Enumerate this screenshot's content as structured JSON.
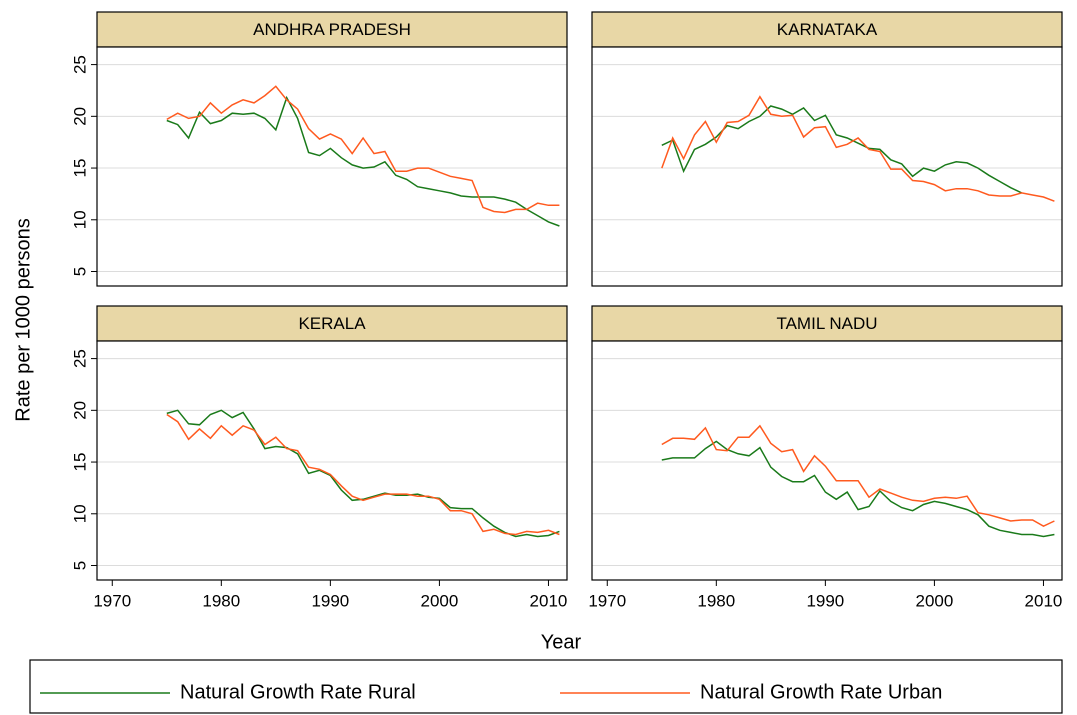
{
  "chart_data": {
    "type": "line",
    "xlabel": "Year",
    "ylabel": "Rate per 1000 persons",
    "x": [
      1975,
      1976,
      1977,
      1978,
      1979,
      1980,
      1981,
      1982,
      1983,
      1984,
      1985,
      1986,
      1987,
      1988,
      1989,
      1990,
      1991,
      1992,
      1993,
      1994,
      1995,
      1996,
      1997,
      1998,
      1999,
      2000,
      2001,
      2002,
      2003,
      2004,
      2005,
      2006,
      2007,
      2008,
      2009,
      2010,
      2011
    ],
    "xlim": [
      1968.6,
      2011.7
    ],
    "xticks": [
      1970,
      1980,
      1990,
      2000,
      2010
    ],
    "ylim": [
      3.6,
      26.7
    ],
    "yticks": [
      5,
      10,
      15,
      20,
      25
    ],
    "grid": true,
    "legend": "bottom",
    "series": [
      {
        "name": "Natural Growth Rate Rural",
        "color": "#1a7a1a"
      },
      {
        "name": "Natural Growth Rate Urban",
        "color": "#ff5a1f"
      }
    ],
    "panels": [
      {
        "title": "ANDHRA PRADESH",
        "values": [
          [
            19.6,
            19.2,
            17.9,
            20.4,
            19.3,
            19.6,
            20.3,
            20.2,
            20.3,
            19.8,
            18.7,
            21.8,
            19.8,
            16.5,
            16.2,
            16.9,
            16.0,
            15.3,
            15.0,
            15.1,
            15.6,
            14.3,
            13.9,
            13.2,
            13.0,
            12.8,
            12.6,
            12.3,
            12.2,
            12.2,
            12.2,
            12.0,
            11.7,
            11.0,
            10.4,
            9.8,
            9.4
          ],
          [
            19.7,
            20.3,
            19.8,
            20.0,
            21.3,
            20.3,
            21.1,
            21.6,
            21.3,
            22.0,
            22.9,
            21.6,
            20.7,
            18.8,
            17.8,
            18.3,
            17.8,
            16.4,
            17.9,
            16.4,
            16.6,
            14.7,
            14.7,
            15.0,
            15.0,
            14.6,
            14.2,
            14.0,
            13.8,
            11.2,
            10.8,
            10.7,
            11.0,
            11.0,
            11.6,
            11.4,
            11.4
          ]
        ]
      },
      {
        "title": "KARNATAKA",
        "values": [
          [
            17.2,
            17.7,
            14.7,
            16.8,
            17.3,
            18.0,
            19.1,
            18.8,
            19.5,
            20.0,
            21.0,
            20.7,
            20.2,
            20.8,
            19.6,
            20.1,
            18.2,
            17.9,
            17.4,
            16.9,
            16.8,
            15.8,
            15.4,
            14.2,
            15.0,
            14.7,
            15.3,
            15.6,
            15.5,
            15.0,
            14.3,
            13.7,
            13.1,
            12.6,
            null,
            null,
            null
          ],
          [
            15.0,
            17.9,
            15.9,
            18.2,
            19.5,
            17.5,
            19.4,
            19.5,
            20.1,
            21.9,
            20.2,
            20.0,
            20.1,
            18.0,
            18.9,
            19.0,
            17.0,
            17.3,
            17.9,
            16.8,
            16.6,
            14.9,
            14.9,
            13.8,
            13.7,
            13.4,
            12.8,
            13.0,
            13.0,
            12.8,
            12.4,
            12.3,
            12.3,
            12.6,
            12.4,
            12.2,
            11.8
          ]
        ]
      },
      {
        "title": "KERALA",
        "values": [
          [
            19.7,
            20.0,
            18.7,
            18.6,
            19.6,
            20.0,
            19.3,
            19.8,
            18.2,
            16.3,
            16.5,
            16.4,
            15.8,
            13.9,
            14.2,
            13.7,
            12.3,
            11.3,
            11.4,
            11.7,
            12.0,
            11.8,
            11.8,
            11.9,
            11.6,
            11.5,
            10.6,
            10.5,
            10.5,
            9.6,
            8.8,
            8.2,
            7.8,
            8.0,
            7.8,
            7.9,
            8.3
          ],
          [
            19.6,
            18.9,
            17.2,
            18.2,
            17.3,
            18.5,
            17.6,
            18.5,
            18.1,
            16.7,
            17.4,
            16.3,
            16.1,
            14.5,
            14.3,
            13.8,
            12.7,
            11.7,
            11.3,
            11.6,
            11.9,
            11.9,
            11.9,
            11.7,
            11.7,
            11.4,
            10.3,
            10.3,
            10.0,
            8.3,
            8.5,
            8.1,
            8.0,
            8.3,
            8.2,
            8.4,
            8.0
          ]
        ]
      },
      {
        "title": "TAMIL NADU",
        "values": [
          [
            15.2,
            15.4,
            15.4,
            15.4,
            16.3,
            17.0,
            16.2,
            15.8,
            15.6,
            16.4,
            14.5,
            13.6,
            13.1,
            13.1,
            13.7,
            12.1,
            11.4,
            12.1,
            10.4,
            10.7,
            12.2,
            11.2,
            10.6,
            10.3,
            10.9,
            11.2,
            11.0,
            10.7,
            10.4,
            9.9,
            8.8,
            8.4,
            8.2,
            8.0,
            8.0,
            7.8,
            8.0
          ],
          [
            16.7,
            17.3,
            17.3,
            17.2,
            18.3,
            16.2,
            16.1,
            17.4,
            17.4,
            18.5,
            16.8,
            16.0,
            16.2,
            14.1,
            15.6,
            14.6,
            13.2,
            13.2,
            13.2,
            11.6,
            12.4,
            12.0,
            11.6,
            11.3,
            11.2,
            11.5,
            11.6,
            11.5,
            11.7,
            10.1,
            9.9,
            9.6,
            9.3,
            9.4,
            9.4,
            8.8,
            9.3
          ]
        ]
      }
    ]
  }
}
